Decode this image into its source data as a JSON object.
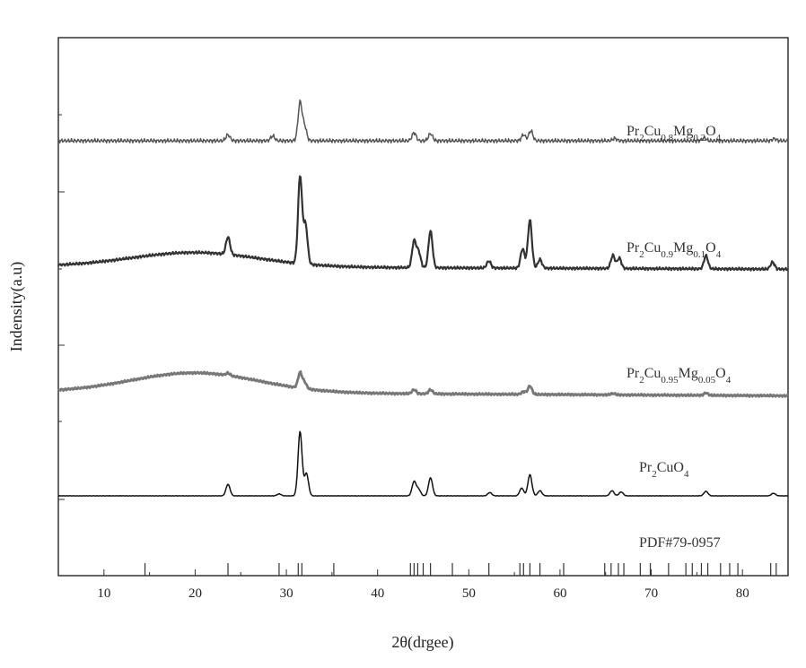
{
  "chart_data": {
    "type": "line",
    "xlabel": "2θ(drgee)",
    "ylabel": "Indensity(a.u)",
    "xlim": [
      5,
      85
    ],
    "x_ticks": [
      10,
      20,
      30,
      40,
      50,
      60,
      70,
      80
    ],
    "y_ticks_shown": false,
    "grid": false,
    "legend": "none",
    "series": [
      {
        "name": "Pr2Cu0.8Mg0.2O4",
        "label_parts": [
          [
            "Pr",
            ""
          ],
          [
            "2",
            "sub"
          ],
          [
            "Cu",
            ""
          ],
          [
            "0.8",
            "sub"
          ],
          [
            "Mg",
            ""
          ],
          [
            "0.2",
            "sub"
          ],
          [
            "O",
            ""
          ],
          [
            "4",
            "sub"
          ]
        ],
        "color": "#555555",
        "peaks": [
          [
            23.6,
            0.15
          ],
          [
            28.5,
            0.12
          ],
          [
            31.5,
            0.95
          ],
          [
            32.0,
            0.35
          ],
          [
            44.0,
            0.2
          ],
          [
            45.8,
            0.18
          ],
          [
            56.0,
            0.15
          ],
          [
            56.8,
            0.25
          ],
          [
            66.0,
            0.06
          ],
          [
            75.8,
            0.07
          ],
          [
            83.5,
            0.05
          ]
        ]
      },
      {
        "name": "Pr2Cu0.9Mg0.1O4",
        "label_parts": [
          [
            "Pr",
            ""
          ],
          [
            "2",
            "sub"
          ],
          [
            "Cu",
            ""
          ],
          [
            "0.9",
            "sub"
          ],
          [
            "Mg",
            ""
          ],
          [
            "0.1",
            "sub"
          ],
          [
            "O",
            ""
          ],
          [
            "4",
            "sub"
          ]
        ],
        "color": "#333333",
        "peaks": [
          [
            23.6,
            0.2
          ],
          [
            31.5,
            1.0
          ],
          [
            32.1,
            0.45
          ],
          [
            44.0,
            0.3
          ],
          [
            44.5,
            0.18
          ],
          [
            45.8,
            0.42
          ],
          [
            52.2,
            0.08
          ],
          [
            55.9,
            0.22
          ],
          [
            56.7,
            0.55
          ],
          [
            57.8,
            0.1
          ],
          [
            65.8,
            0.15
          ],
          [
            66.5,
            0.12
          ],
          [
            76.0,
            0.15
          ],
          [
            83.3,
            0.08
          ]
        ]
      },
      {
        "name": "Pr2Cu0.95Mg0.05O4",
        "label_parts": [
          [
            "Pr",
            ""
          ],
          [
            "2",
            "sub"
          ],
          [
            "Cu",
            ""
          ],
          [
            "0.95",
            "sub"
          ],
          [
            "Mg",
            ""
          ],
          [
            "0.05",
            "sub"
          ],
          [
            "O",
            ""
          ],
          [
            "4",
            "sub"
          ]
        ],
        "color": "#777777",
        "peaks": [
          [
            23.6,
            0.07
          ],
          [
            31.5,
            0.45
          ],
          [
            32.0,
            0.18
          ],
          [
            44.0,
            0.12
          ],
          [
            45.8,
            0.12
          ],
          [
            56.0,
            0.08
          ],
          [
            56.7,
            0.25
          ],
          [
            65.8,
            0.04
          ],
          [
            76.0,
            0.07
          ]
        ]
      },
      {
        "name": "Pr2CuO4",
        "label_parts": [
          [
            "Pr",
            ""
          ],
          [
            "2",
            "sub"
          ],
          [
            "CuO",
            ""
          ],
          [
            "4",
            "sub"
          ]
        ],
        "color": "#111111",
        "peaks": [
          [
            23.6,
            0.18
          ],
          [
            29.2,
            0.03
          ],
          [
            31.5,
            1.0
          ],
          [
            32.2,
            0.35
          ],
          [
            44.0,
            0.22
          ],
          [
            44.5,
            0.1
          ],
          [
            45.8,
            0.28
          ],
          [
            52.3,
            0.05
          ],
          [
            55.8,
            0.12
          ],
          [
            56.7,
            0.33
          ],
          [
            57.8,
            0.08
          ],
          [
            65.7,
            0.08
          ],
          [
            66.7,
            0.06
          ],
          [
            76.0,
            0.07
          ],
          [
            83.4,
            0.04
          ]
        ]
      }
    ],
    "reference": {
      "name": "PDF#79-0957",
      "positions": [
        14.5,
        23.6,
        29.2,
        31.3,
        31.7,
        35.2,
        43.6,
        44.0,
        44.4,
        45.0,
        45.8,
        48.2,
        52.2,
        55.6,
        56.0,
        56.7,
        57.8,
        60.4,
        64.9,
        65.6,
        66.4,
        67.0,
        68.8,
        69.9,
        71.9,
        73.8,
        74.5,
        75.5,
        76.2,
        77.6,
        78.6,
        79.5,
        83.1,
        83.7
      ]
    }
  }
}
